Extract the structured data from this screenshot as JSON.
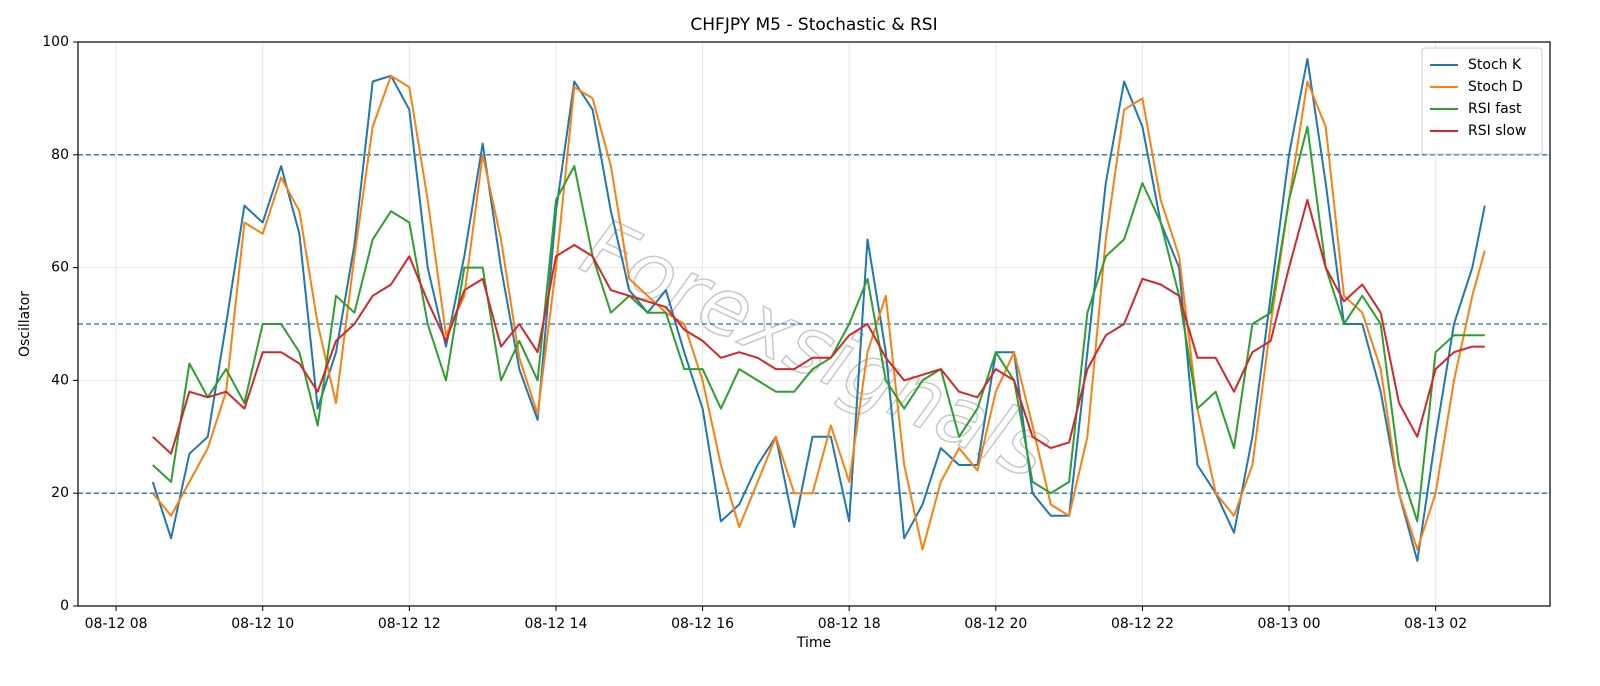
{
  "chart_data": {
    "type": "line",
    "title": "CHFJPY M5 - Stochastic & RSI",
    "xlabel": "Time",
    "ylabel": "Oscillator",
    "watermark": "Forexsignals",
    "x": [
      8.5,
      8.75,
      9,
      9.25,
      9.5,
      9.75,
      10,
      10.25,
      10.5,
      10.75,
      11,
      11.25,
      11.5,
      11.75,
      12,
      12.25,
      12.5,
      12.75,
      13,
      13.25,
      13.5,
      13.75,
      14,
      14.25,
      14.5,
      14.75,
      15,
      15.25,
      15.5,
      15.75,
      16,
      16.25,
      16.5,
      16.75,
      17,
      17.25,
      17.5,
      17.75,
      18,
      18.25,
      18.5,
      18.75,
      19,
      19.25,
      19.5,
      19.75,
      20,
      20.25,
      20.5,
      20.75,
      21,
      21.25,
      21.5,
      21.75,
      22,
      22.25,
      22.5,
      22.75,
      23,
      23.25,
      23.5,
      23.75,
      24,
      24.25,
      24.5,
      24.75,
      25,
      25.25,
      25.5,
      25.75,
      26,
      26.25,
      26.5,
      26.67
    ],
    "series": [
      {
        "name": "Stoch K",
        "color": "#1f77b4",
        "values": [
          22,
          12,
          27,
          30,
          50,
          71,
          68,
          78,
          66,
          35,
          45,
          64,
          93,
          94,
          88,
          60,
          46,
          62,
          82,
          60,
          42,
          33,
          70,
          93,
          88,
          70,
          56,
          52,
          56,
          45,
          35,
          15,
          18,
          25,
          30,
          14,
          30,
          30,
          15,
          65,
          45,
          12,
          18,
          28,
          25,
          25,
          45,
          45,
          20,
          16,
          16,
          45,
          75,
          93,
          85,
          68,
          60,
          25,
          20,
          13,
          30,
          55,
          80,
          97,
          75,
          50,
          50,
          38,
          20,
          8,
          30,
          50,
          60,
          71
        ]
      },
      {
        "name": "Stoch D",
        "color": "#ff7f0e",
        "values": [
          20,
          16,
          22,
          28,
          38,
          68,
          66,
          76,
          70,
          50,
          36,
          62,
          85,
          94,
          92,
          72,
          48,
          55,
          80,
          65,
          44,
          34,
          60,
          92,
          90,
          78,
          58,
          55,
          52,
          50,
          40,
          25,
          14,
          22,
          30,
          20,
          20,
          32,
          22,
          45,
          55,
          25,
          10,
          22,
          28,
          24,
          38,
          45,
          32,
          18,
          16,
          30,
          65,
          88,
          90,
          72,
          62,
          35,
          20,
          16,
          25,
          50,
          72,
          93,
          85,
          55,
          52,
          42,
          20,
          10,
          20,
          40,
          55,
          63
        ]
      },
      {
        "name": "RSI fast",
        "color": "#2ca02c",
        "values": [
          25,
          22,
          43,
          37,
          42,
          36,
          50,
          50,
          45,
          32,
          55,
          52,
          65,
          70,
          68,
          50,
          40,
          60,
          60,
          40,
          47,
          40,
          72,
          78,
          62,
          52,
          55,
          52,
          52,
          42,
          42,
          35,
          42,
          40,
          38,
          38,
          42,
          44,
          50,
          58,
          40,
          35,
          40,
          42,
          30,
          35,
          45,
          40,
          22,
          20,
          22,
          52,
          62,
          65,
          75,
          68,
          55,
          35,
          38,
          28,
          50,
          52,
          72,
          85,
          60,
          50,
          55,
          50,
          25,
          15,
          45,
          48,
          48,
          48
        ]
      },
      {
        "name": "RSI slow",
        "color": "#d62728",
        "values": [
          30,
          27,
          38,
          37,
          38,
          35,
          45,
          45,
          43,
          38,
          47,
          50,
          55,
          57,
          62,
          54,
          47,
          56,
          58,
          46,
          50,
          45,
          62,
          64,
          62,
          56,
          55,
          54,
          53,
          49,
          47,
          44,
          45,
          44,
          42,
          42,
          44,
          44,
          48,
          50,
          44,
          40,
          41,
          42,
          38,
          37,
          42,
          40,
          30,
          28,
          29,
          42,
          48,
          50,
          58,
          57,
          55,
          44,
          44,
          38,
          45,
          47,
          60,
          72,
          60,
          54,
          57,
          52,
          36,
          30,
          42,
          45,
          46,
          46
        ]
      }
    ],
    "xlim": [
      7.48,
      27.56
    ],
    "xticks": [
      {
        "value": 8,
        "label": "08-12 08"
      },
      {
        "value": 10,
        "label": "08-12 10"
      },
      {
        "value": 12,
        "label": "08-12 12"
      },
      {
        "value": 14,
        "label": "08-12 14"
      },
      {
        "value": 16,
        "label": "08-12 16"
      },
      {
        "value": 18,
        "label": "08-12 18"
      },
      {
        "value": 20,
        "label": "08-12 20"
      },
      {
        "value": 22,
        "label": "08-12 22"
      },
      {
        "value": 24,
        "label": "08-13 00"
      },
      {
        "value": 26,
        "label": "08-13 02"
      }
    ],
    "ylim": [
      0,
      100
    ],
    "yticks": [
      0,
      20,
      40,
      60,
      80,
      100
    ],
    "hlines": [
      20,
      50,
      80
    ],
    "hline_color": "#1f77b4",
    "grid": true,
    "legend": "upper right"
  }
}
